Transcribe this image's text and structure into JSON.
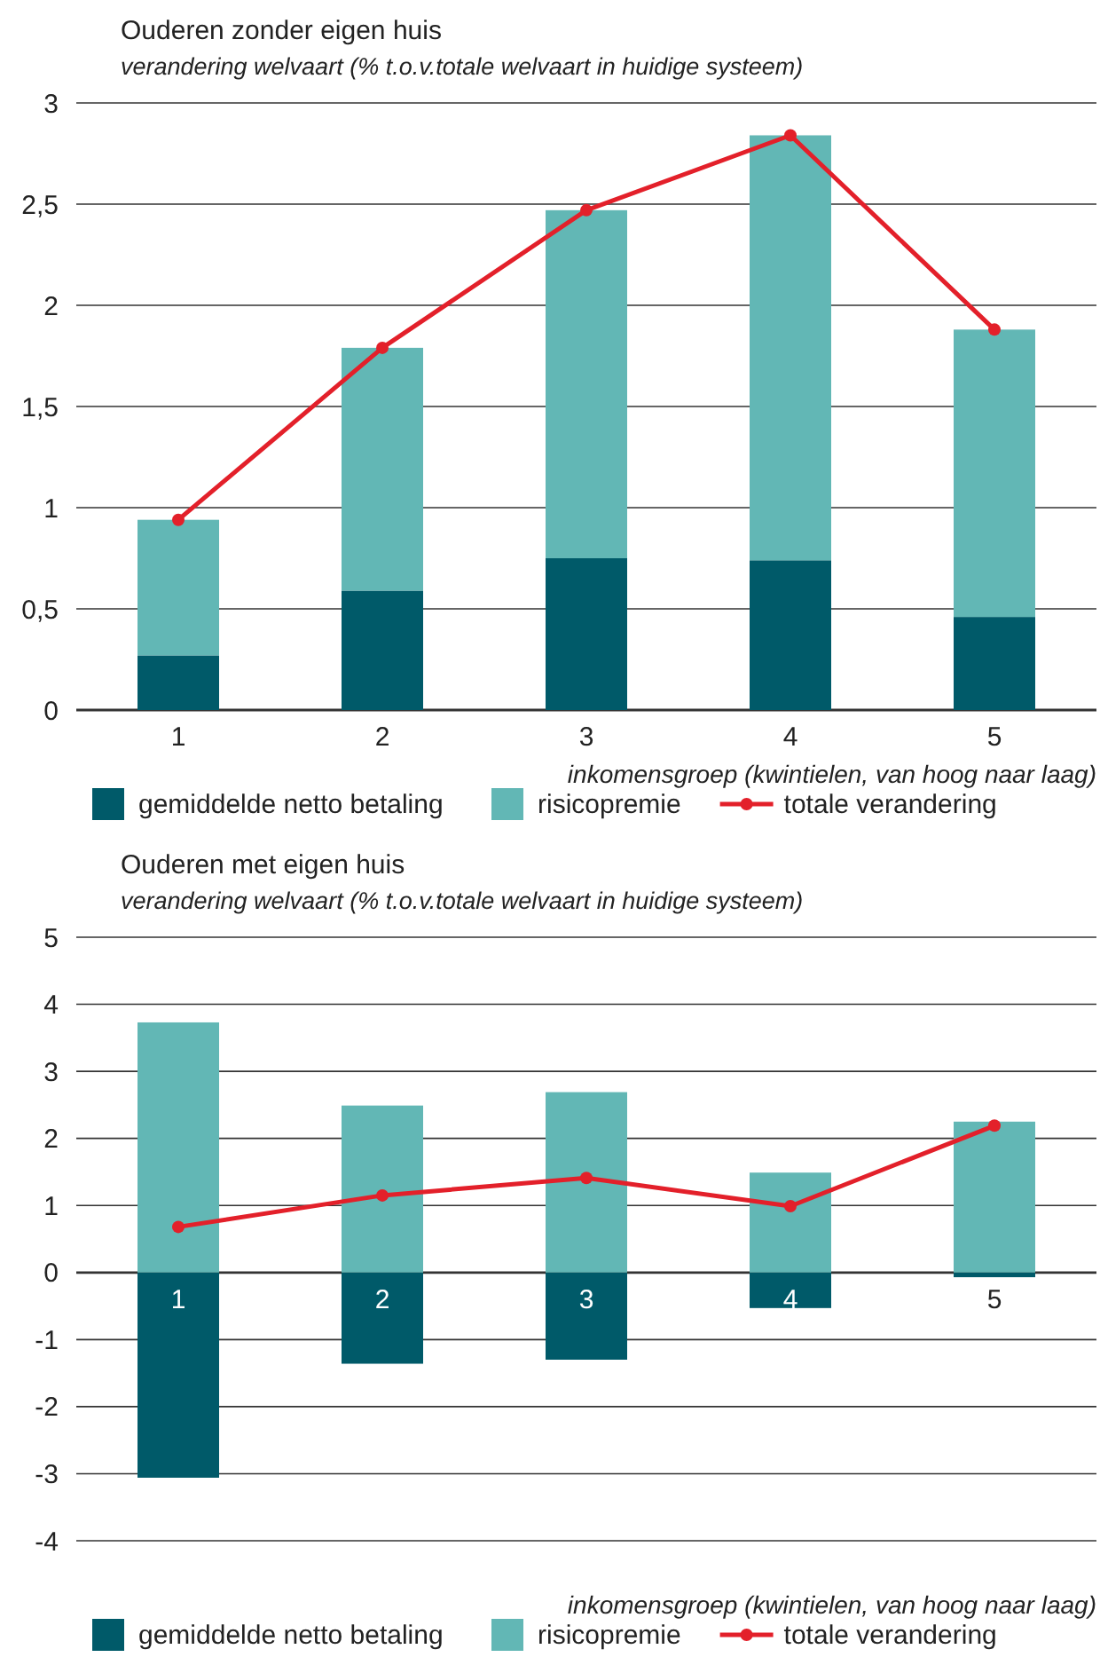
{
  "chart_data": [
    {
      "type": "bar",
      "title": "Ouderen zonder eigen huis",
      "subtitle": "verandering welvaart (% t.o.v.totale welvaart in huidige systeem)",
      "xlabel": "inkomensgroep (kwintielen, van hoog naar laag)",
      "categories": [
        "1",
        "2",
        "3",
        "4",
        "5"
      ],
      "stacked": true,
      "series": [
        {
          "name": "gemiddelde netto betaling",
          "color": "#005a69",
          "values": [
            0.27,
            0.59,
            0.75,
            0.74,
            0.46
          ]
        },
        {
          "name": "risicopremie",
          "color": "#62b7b5",
          "values": [
            0.67,
            1.2,
            1.72,
            2.1,
            1.42
          ]
        },
        {
          "name": "totale verandering",
          "type": "line",
          "color": "#e3202a",
          "values": [
            0.94,
            1.79,
            2.47,
            2.84,
            1.88
          ]
        }
      ],
      "ylim": [
        0,
        3
      ],
      "yticks": [
        0,
        {
          "value": 0.5,
          "label": "0,5"
        },
        1,
        {
          "value": 1.5,
          "label": "1,5"
        },
        2,
        {
          "value": 2.5,
          "label": "2,5"
        },
        3
      ],
      "grid": "y",
      "legend": "bottom",
      "marker": "circle"
    },
    {
      "type": "bar",
      "title": "Ouderen met eigen huis",
      "subtitle": "verandering welvaart (% t.o.v.totale welvaart in huidige systeem)",
      "xlabel": "inkomensgroep (kwintielen, van hoog naar laag)",
      "categories": [
        "1",
        "2",
        "3",
        "4",
        "5"
      ],
      "stacked": true,
      "series": [
        {
          "name": "gemiddelde netto betaling",
          "color": "#005a69",
          "values": [
            -3.06,
            -1.36,
            -1.3,
            -0.53,
            -0.07
          ]
        },
        {
          "name": "risicopremie",
          "color": "#62b7b5",
          "values": [
            3.73,
            2.49,
            2.69,
            1.49,
            2.25
          ]
        },
        {
          "name": "totale verandering",
          "type": "line",
          "color": "#e3202a",
          "values": [
            0.68,
            1.15,
            1.41,
            0.99,
            2.19
          ]
        }
      ],
      "ylim": [
        -4,
        5
      ],
      "yticks": [
        -4,
        -3,
        -2,
        -1,
        0,
        1,
        2,
        3,
        4,
        5
      ],
      "grid": "y",
      "legend": "bottom",
      "marker": "circle"
    }
  ]
}
